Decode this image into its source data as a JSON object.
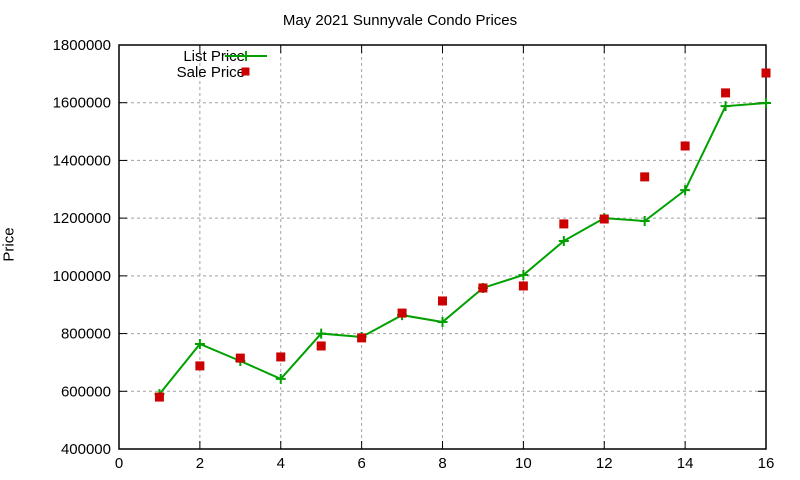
{
  "chart_data": {
    "type": "line",
    "title": "May 2021 Sunnyvale Condo Prices",
    "xlabel": "",
    "ylabel": "Price",
    "xlim": [
      0,
      16
    ],
    "ylim": [
      400000,
      1800000
    ],
    "xticks": [
      0,
      2,
      4,
      6,
      8,
      10,
      12,
      14,
      16
    ],
    "yticks": [
      400000,
      600000,
      800000,
      1000000,
      1200000,
      1400000,
      1600000,
      1800000
    ],
    "grid": true,
    "legend_position": "top-left",
    "x": [
      1,
      2,
      3,
      4,
      5,
      6,
      7,
      8,
      9,
      10,
      11,
      12,
      13,
      14,
      15,
      16
    ],
    "series": [
      {
        "name": "List Price",
        "style": "linespoints",
        "color": "#00a000",
        "values": [
          590000,
          764000,
          705000,
          643000,
          800000,
          788000,
          864000,
          840000,
          958000,
          1003000,
          1121000,
          1200000,
          1190000,
          1297000,
          1588000,
          1599000
        ]
      },
      {
        "name": "Sale Price",
        "style": "points",
        "color": "#cc0000",
        "values": [
          580000,
          688000,
          715000,
          719000,
          757000,
          785000,
          871000,
          913000,
          958000,
          965000,
          1180000,
          1197000,
          1343000,
          1450000,
          1634000,
          1703000
        ]
      }
    ]
  }
}
